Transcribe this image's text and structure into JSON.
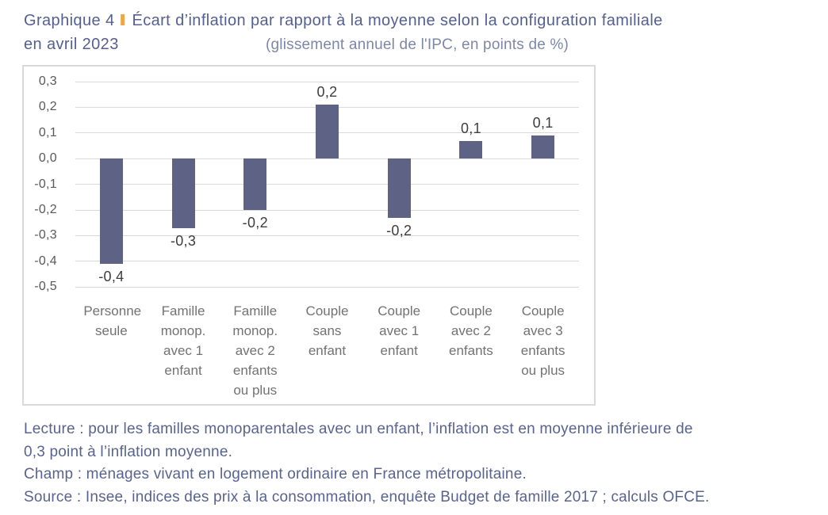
{
  "header": {
    "label": "Graphique 4",
    "separator": "I",
    "title": "Écart d’inflation par rapport à la moyenne selon la configuration familiale",
    "title_line2": "en avril 2023",
    "subtitle": "(glissement annuel de l'IPC, en points de %)"
  },
  "chart_data": {
    "type": "bar",
    "title": "Écart d’inflation par rapport à la moyenne selon la configuration familiale en avril 2023",
    "subtitle": "(glissement annuel de l'IPC, en points de %)",
    "categories": [
      "Personne seule",
      "Famille monop. avec 1 enfant",
      "Famille monop. avec 2 enfants ou plus",
      "Couple sans enfant",
      "Couple avec 1 enfant",
      "Couple avec 2 enfants",
      "Couple avec 3 enfants ou plus"
    ],
    "values": [
      -0.41,
      -0.27,
      -0.2,
      0.21,
      -0.23,
      0.07,
      0.09
    ],
    "data_labels": [
      "-0,4",
      "-0,3",
      "-0,2",
      "0,2",
      "-0,2",
      "0,1",
      "0,1"
    ],
    "y_ticks": [
      "0,3",
      "0,2",
      "0,1",
      "0,0",
      "-0,1",
      "-0,2",
      "-0,3",
      "-0,4",
      "-0,5"
    ],
    "ylim": [
      -0.5,
      0.3
    ],
    "ytick_step": 0.1,
    "grid": true,
    "legend": "none",
    "xlabel": "",
    "ylabel": ""
  },
  "footer": {
    "lines": [
      "Lecture : pour les familles monoparentales avec un enfant, l’inflation est en moyenne inférieure de",
      "0,3 point à l’inflation moyenne.",
      "Champ : ménages vivant en logement ordinaire en France métropolitaine.",
      "Source : Insee, indices des prix à la consommation, enquête Budget de famille 2017 ; calculs OFCE."
    ]
  },
  "colors": {
    "title": "#545f92",
    "separator": "#efa64b",
    "subtitle": "#7e87a8",
    "bar": "#5e6284",
    "gridline": "#d9d9d9",
    "border": "#d9d9d9",
    "axis": "#595959",
    "category": "#727272",
    "datalabel": "#3d3d3d",
    "footer": "#596390"
  }
}
